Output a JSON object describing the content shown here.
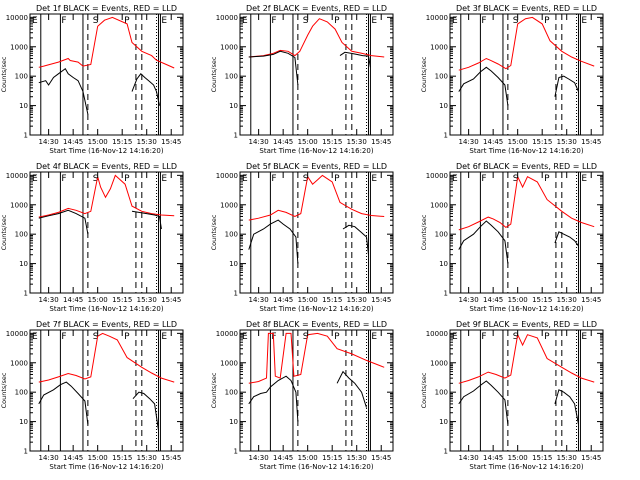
{
  "chart_data": [
    {
      "title": "Det 1f BLACK = Events, RED = LLD",
      "xlabel": "Start Time (16-Nov-12 14:16:20)",
      "ylabel": "Counts/sec",
      "letters": [
        "E",
        "F",
        "S",
        "P",
        "E"
      ],
      "red": [
        [
          14.4,
          200
        ],
        [
          14.45,
          220
        ],
        [
          14.6,
          300
        ],
        [
          14.7,
          400
        ],
        [
          14.72,
          340
        ],
        [
          14.8,
          300
        ],
        [
          14.85,
          220
        ],
        [
          14.93,
          250
        ],
        [
          15.0,
          5000
        ],
        [
          15.07,
          8000
        ],
        [
          15.15,
          10000
        ],
        [
          15.3,
          6000
        ],
        [
          15.35,
          1400
        ],
        [
          15.45,
          700
        ],
        [
          15.55,
          500
        ],
        [
          15.6,
          350
        ],
        [
          15.7,
          250
        ],
        [
          15.78,
          190
        ]
      ],
      "black": [
        [
          14.4,
          60
        ],
        [
          14.47,
          70
        ],
        [
          14.5,
          50
        ],
        [
          14.55,
          90
        ],
        [
          14.6,
          120
        ],
        [
          14.67,
          180
        ],
        [
          14.7,
          120
        ],
        [
          14.75,
          90
        ],
        [
          14.8,
          70
        ],
        [
          14.85,
          30
        ],
        [
          14.9,
          5
        ]
      ],
      "black2": [
        [
          15.35,
          30
        ],
        [
          15.4,
          80
        ],
        [
          15.44,
          120
        ],
        [
          15.48,
          90
        ],
        [
          15.52,
          70
        ],
        [
          15.57,
          50
        ],
        [
          15.6,
          30
        ],
        [
          15.63,
          10
        ]
      ]
    },
    {
      "title": "Det 2f BLACK = Events, RED = LLD",
      "xlabel": "Start Time (16-Nov-12 14:16:20)",
      "ylabel": "Counts/sec",
      "letters": [
        "E",
        "F",
        "S",
        "P",
        "E"
      ],
      "red": [
        [
          14.4,
          450
        ],
        [
          14.55,
          500
        ],
        [
          14.65,
          600
        ],
        [
          14.72,
          750
        ],
        [
          14.8,
          700
        ],
        [
          14.87,
          500
        ],
        [
          14.92,
          700
        ],
        [
          15.0,
          2500
        ],
        [
          15.05,
          5000
        ],
        [
          15.12,
          9000
        ],
        [
          15.2,
          7000
        ],
        [
          15.28,
          4000
        ],
        [
          15.35,
          1400
        ],
        [
          15.45,
          700
        ],
        [
          15.55,
          600
        ],
        [
          15.65,
          500
        ],
        [
          15.78,
          450
        ]
      ],
      "black": [
        [
          14.4,
          450
        ],
        [
          14.55,
          480
        ],
        [
          14.65,
          550
        ],
        [
          14.72,
          700
        ],
        [
          14.8,
          600
        ],
        [
          14.87,
          430
        ],
        [
          14.9,
          50
        ]
      ],
      "black2": [
        [
          15.33,
          500
        ],
        [
          15.38,
          650
        ],
        [
          15.44,
          600
        ],
        [
          15.5,
          550
        ],
        [
          15.56,
          500
        ],
        [
          15.62,
          480
        ],
        [
          15.64,
          200
        ]
      ]
    },
    {
      "title": "Det 3f BLACK = Events, RED = LLD",
      "xlabel": "Start Time (16-Nov-12 14:16:20)",
      "ylabel": "Counts/sec",
      "letters": [
        "E",
        "F",
        "S",
        "P",
        "E"
      ],
      "red": [
        [
          14.4,
          160
        ],
        [
          14.5,
          200
        ],
        [
          14.6,
          280
        ],
        [
          14.68,
          400
        ],
        [
          14.72,
          350
        ],
        [
          14.8,
          260
        ],
        [
          14.88,
          180
        ],
        [
          14.93,
          230
        ],
        [
          15.0,
          6000
        ],
        [
          15.08,
          9000
        ],
        [
          15.15,
          10000
        ],
        [
          15.25,
          6000
        ],
        [
          15.33,
          1600
        ],
        [
          15.45,
          700
        ],
        [
          15.55,
          450
        ],
        [
          15.65,
          320
        ],
        [
          15.78,
          220
        ]
      ],
      "black": [
        [
          14.4,
          30
        ],
        [
          14.45,
          55
        ],
        [
          14.55,
          80
        ],
        [
          14.62,
          140
        ],
        [
          14.68,
          200
        ],
        [
          14.73,
          150
        ],
        [
          14.8,
          90
        ],
        [
          14.87,
          50
        ],
        [
          14.9,
          10
        ]
      ],
      "black2": [
        [
          15.38,
          20
        ],
        [
          15.42,
          90
        ],
        [
          15.47,
          100
        ],
        [
          15.52,
          80
        ],
        [
          15.58,
          60
        ],
        [
          15.62,
          30
        ]
      ]
    },
    {
      "title": "Det 4f BLACK = Events, RED = LLD",
      "xlabel": "Start Time (16-Nov-12 14:16:20)",
      "ylabel": "Counts/sec",
      "letters": [
        "E",
        "F",
        "S",
        "P",
        "E"
      ],
      "red": [
        [
          14.4,
          380
        ],
        [
          14.5,
          450
        ],
        [
          14.6,
          550
        ],
        [
          14.7,
          750
        ],
        [
          14.78,
          650
        ],
        [
          14.87,
          500
        ],
        [
          14.93,
          600
        ],
        [
          15.0,
          9000
        ],
        [
          15.03,
          4000
        ],
        [
          15.08,
          1800
        ],
        [
          15.13,
          3500
        ],
        [
          15.18,
          10000
        ],
        [
          15.28,
          5000
        ],
        [
          15.35,
          900
        ],
        [
          15.45,
          600
        ],
        [
          15.55,
          500
        ],
        [
          15.65,
          450
        ],
        [
          15.78,
          420
        ]
      ],
      "black": [
        [
          14.4,
          350
        ],
        [
          14.5,
          420
        ],
        [
          14.6,
          500
        ],
        [
          14.7,
          650
        ],
        [
          14.78,
          500
        ],
        [
          14.87,
          350
        ],
        [
          14.9,
          100
        ]
      ],
      "black2": [
        [
          15.35,
          600
        ],
        [
          15.42,
          550
        ],
        [
          15.5,
          500
        ],
        [
          15.58,
          450
        ],
        [
          15.63,
          400
        ],
        [
          15.65,
          150
        ]
      ]
    },
    {
      "title": "Det 5f BLACK = Events, RED = LLD",
      "xlabel": "Start Time (16-Nov-12 14:16:20)",
      "ylabel": "Counts/sec",
      "letters": [
        "E",
        "F",
        "S",
        "P",
        "E"
      ],
      "red": [
        [
          14.4,
          300
        ],
        [
          14.5,
          350
        ],
        [
          14.62,
          450
        ],
        [
          14.7,
          650
        ],
        [
          14.78,
          550
        ],
        [
          14.87,
          400
        ],
        [
          14.93,
          500
        ],
        [
          15.0,
          9000
        ],
        [
          15.05,
          5000
        ],
        [
          15.1,
          7000
        ],
        [
          15.15,
          10000
        ],
        [
          15.25,
          6000
        ],
        [
          15.33,
          1200
        ],
        [
          15.45,
          700
        ],
        [
          15.55,
          500
        ],
        [
          15.65,
          430
        ],
        [
          15.78,
          400
        ]
      ],
      "black": [
        [
          14.4,
          30
        ],
        [
          14.45,
          100
        ],
        [
          14.55,
          150
        ],
        [
          14.62,
          220
        ],
        [
          14.7,
          300
        ],
        [
          14.75,
          220
        ],
        [
          14.82,
          150
        ],
        [
          14.88,
          80
        ],
        [
          14.9,
          10
        ]
      ],
      "black2": [
        [
          15.36,
          150
        ],
        [
          15.42,
          200
        ],
        [
          15.48,
          180
        ],
        [
          15.54,
          120
        ],
        [
          15.6,
          80
        ],
        [
          15.62,
          20
        ]
      ]
    },
    {
      "title": "Det 6f BLACK = Events, RED = LLD",
      "xlabel": "Start Time (16-Nov-12 14:16:20)",
      "ylabel": "Counts/sec",
      "letters": [
        "E",
        "F",
        "S",
        "P",
        "E"
      ],
      "red": [
        [
          14.4,
          140
        ],
        [
          14.5,
          180
        ],
        [
          14.6,
          260
        ],
        [
          14.7,
          380
        ],
        [
          14.75,
          330
        ],
        [
          14.82,
          250
        ],
        [
          14.88,
          170
        ],
        [
          14.93,
          220
        ],
        [
          15.0,
          9000
        ],
        [
          15.05,
          4000
        ],
        [
          15.1,
          9000
        ],
        [
          15.2,
          6000
        ],
        [
          15.3,
          1500
        ],
        [
          15.45,
          600
        ],
        [
          15.55,
          350
        ],
        [
          15.65,
          250
        ],
        [
          15.78,
          180
        ]
      ],
      "black": [
        [
          14.4,
          30
        ],
        [
          14.45,
          60
        ],
        [
          14.55,
          100
        ],
        [
          14.62,
          180
        ],
        [
          14.68,
          280
        ],
        [
          14.73,
          200
        ],
        [
          14.8,
          120
        ],
        [
          14.87,
          60
        ],
        [
          14.9,
          10
        ]
      ],
      "black2": [
        [
          15.38,
          50
        ],
        [
          15.42,
          120
        ],
        [
          15.47,
          100
        ],
        [
          15.53,
          80
        ],
        [
          15.58,
          60
        ],
        [
          15.62,
          40
        ]
      ]
    },
    {
      "title": "Det 7f BLACK = Events, RED = LLD",
      "xlabel": "Start Time (16-Nov-12 14:16:20)",
      "ylabel": "Counts/sec",
      "letters": [
        "E",
        "F",
        "S",
        "P",
        "E"
      ],
      "red": [
        [
          14.4,
          220
        ],
        [
          14.5,
          260
        ],
        [
          14.6,
          330
        ],
        [
          14.7,
          430
        ],
        [
          14.78,
          370
        ],
        [
          14.87,
          280
        ],
        [
          14.93,
          330
        ],
        [
          15.0,
          8000
        ],
        [
          15.05,
          10000
        ],
        [
          15.12,
          8000
        ],
        [
          15.2,
          6000
        ],
        [
          15.3,
          1500
        ],
        [
          15.45,
          700
        ],
        [
          15.55,
          450
        ],
        [
          15.65,
          300
        ],
        [
          15.78,
          220
        ]
      ],
      "black": [
        [
          14.4,
          40
        ],
        [
          14.45,
          80
        ],
        [
          14.55,
          120
        ],
        [
          14.62,
          180
        ],
        [
          14.68,
          220
        ],
        [
          14.73,
          160
        ],
        [
          14.8,
          90
        ],
        [
          14.87,
          50
        ],
        [
          14.9,
          8
        ]
      ],
      "black2": [
        [
          15.36,
          60
        ],
        [
          15.42,
          100
        ],
        [
          15.47,
          90
        ],
        [
          15.53,
          60
        ],
        [
          15.58,
          40
        ],
        [
          15.62,
          5
        ]
      ]
    },
    {
      "title": "Det 8f BLACK = Events, RED = LLD",
      "xlabel": "Start Time (16-Nov-12 14:16:20)",
      "ylabel": "Counts/sec",
      "letters": [
        "E",
        "F",
        "S",
        "P",
        "E"
      ],
      "red": [
        [
          14.4,
          200
        ],
        [
          14.5,
          230
        ],
        [
          14.58,
          300
        ],
        [
          14.6,
          10000
        ],
        [
          14.65,
          10000
        ],
        [
          14.67,
          350
        ],
        [
          14.72,
          300
        ],
        [
          14.78,
          10000
        ],
        [
          14.83,
          10000
        ],
        [
          14.86,
          350
        ],
        [
          14.93,
          400
        ],
        [
          15.0,
          9000
        ],
        [
          15.1,
          10000
        ],
        [
          15.2,
          8000
        ],
        [
          15.3,
          3000
        ],
        [
          15.45,
          2000
        ],
        [
          15.6,
          1200
        ],
        [
          15.78,
          700
        ]
      ],
      "black": [
        [
          14.4,
          40
        ],
        [
          14.45,
          70
        ],
        [
          14.52,
          90
        ],
        [
          14.58,
          100
        ],
        [
          14.62,
          150
        ],
        [
          14.7,
          250
        ],
        [
          14.78,
          350
        ],
        [
          14.83,
          250
        ],
        [
          14.88,
          100
        ],
        [
          14.9,
          10
        ]
      ],
      "black2": [
        [
          15.3,
          200
        ],
        [
          15.36,
          500
        ],
        [
          15.42,
          300
        ],
        [
          15.48,
          200
        ],
        [
          15.55,
          100
        ],
        [
          15.6,
          30
        ]
      ]
    },
    {
      "title": "Det 9f BLACK = Events, RED = LLD",
      "xlabel": "Start Time (16-Nov-12 14:16:20)",
      "ylabel": "Counts/sec",
      "letters": [
        "E",
        "F",
        "S",
        "P",
        "E"
      ],
      "red": [
        [
          14.4,
          200
        ],
        [
          14.5,
          250
        ],
        [
          14.6,
          330
        ],
        [
          14.7,
          480
        ],
        [
          14.78,
          400
        ],
        [
          14.87,
          300
        ],
        [
          14.93,
          380
        ],
        [
          15.0,
          9000
        ],
        [
          15.05,
          4000
        ],
        [
          15.1,
          9000
        ],
        [
          15.2,
          7000
        ],
        [
          15.3,
          1400
        ],
        [
          15.45,
          700
        ],
        [
          15.55,
          450
        ],
        [
          15.65,
          300
        ],
        [
          15.78,
          220
        ]
      ],
      "black": [
        [
          14.4,
          40
        ],
        [
          14.45,
          70
        ],
        [
          14.55,
          110
        ],
        [
          14.62,
          170
        ],
        [
          14.68,
          240
        ],
        [
          14.73,
          170
        ],
        [
          14.8,
          100
        ],
        [
          14.87,
          55
        ],
        [
          14.9,
          8
        ]
      ],
      "black2": [
        [
          15.38,
          40
        ],
        [
          15.42,
          120
        ],
        [
          15.47,
          100
        ],
        [
          15.53,
          70
        ],
        [
          15.58,
          40
        ],
        [
          15.62,
          8
        ]
      ]
    }
  ],
  "axes": {
    "xticks": [
      "14:30",
      "14:45",
      "15:00",
      "15:15",
      "15:30",
      "15:45"
    ],
    "xtick_values": [
      14.5,
      14.75,
      15.0,
      15.25,
      15.5,
      15.75
    ],
    "yticks": [
      "1",
      "10",
      "100",
      "1000",
      "10000"
    ],
    "ytick_values": [
      1,
      10,
      100,
      1000,
      10000
    ],
    "xlim": [
      14.31,
      15.87
    ],
    "ylim": [
      1,
      13000
    ],
    "solid_lines": [
      14.42,
      14.62,
      14.85,
      15.62,
      15.64
    ],
    "dashed_lines": [
      14.9,
      15.39,
      15.45
    ],
    "dotted_lines": [
      15.6
    ],
    "letter_positions": [
      14.33,
      14.63,
      14.95,
      15.27,
      15.65
    ]
  },
  "colors": {
    "red": "#ff0000",
    "black": "#000000"
  }
}
